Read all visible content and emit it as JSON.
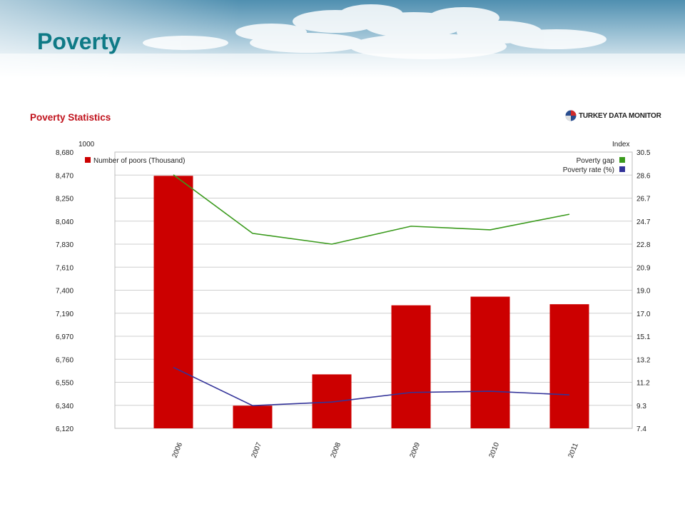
{
  "page": {
    "title": "Poverty"
  },
  "brand": {
    "name": "TURKEY DATA MONITOR"
  },
  "colors": {
    "bar": "#cc0000",
    "gap_line": "#3a9a1c",
    "rate_line": "#333399",
    "title": "#0f7a86",
    "chart_title": "#c0111b"
  },
  "chart_data": {
    "type": "bar",
    "title": "Poverty Statistics",
    "y_left_unit": "1000",
    "y_right_unit": "Index",
    "categories": [
      "2006",
      "2007",
      "2008",
      "2009",
      "2010",
      "2011"
    ],
    "y_left_ticks": [
      "8,680",
      "8,470",
      "8,250",
      "8,040",
      "7,830",
      "7,610",
      "7,400",
      "7,190",
      "6,970",
      "6,760",
      "6,550",
      "6,340",
      "6,120"
    ],
    "y_right_ticks": [
      "30.5",
      "28.6",
      "26.7",
      "24.7",
      "22.8",
      "20.9",
      "19.0",
      "17.0",
      "15.1",
      "13.2",
      "11.2",
      "9.3",
      "7.4"
    ],
    "ylim_left": [
      6120,
      8680
    ],
    "ylim_right": [
      7.4,
      30.5
    ],
    "grid": true,
    "series": [
      {
        "name": "Number of poors (Thousand)",
        "type": "bar",
        "axis": "left",
        "values": [
          8460,
          6330,
          6620,
          7260,
          7340,
          7270
        ]
      },
      {
        "name": "Poverty gap",
        "type": "line",
        "axis": "right",
        "values": [
          28.6,
          23.7,
          22.8,
          24.3,
          24.0,
          25.3
        ]
      },
      {
        "name": "Poverty rate (%)",
        "type": "line",
        "axis": "right",
        "values": [
          12.5,
          9.3,
          9.6,
          10.4,
          10.5,
          10.2
        ]
      }
    ]
  }
}
